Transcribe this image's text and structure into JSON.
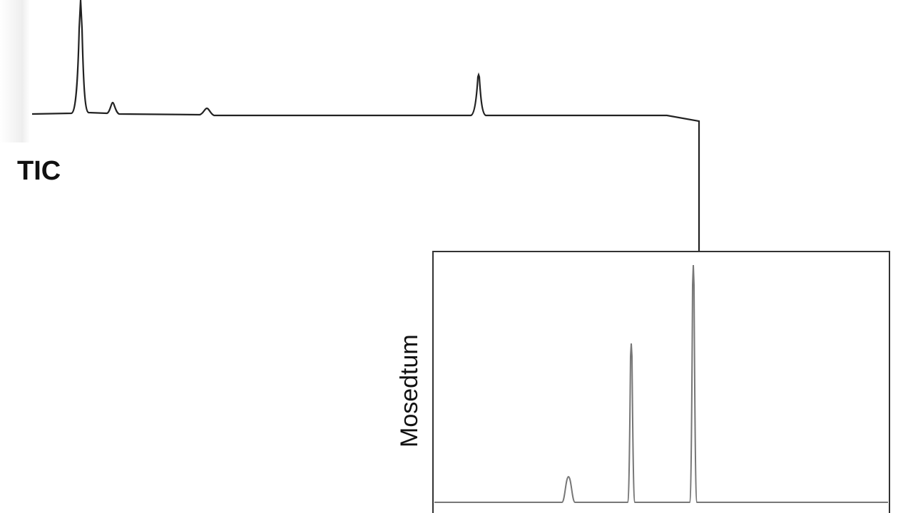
{
  "diagram": {
    "trace_label": "TIC",
    "inset_label": "Mosedtum"
  }
}
